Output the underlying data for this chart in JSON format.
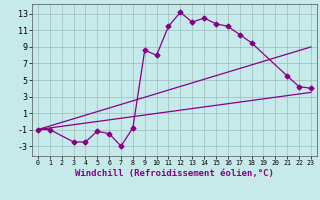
{
  "background_color": "#c6eaea",
  "grid_color": "#9bbdbd",
  "line_color": "#880088",
  "xlim": [
    -0.5,
    23.5
  ],
  "ylim": [
    -4.2,
    14.2
  ],
  "xticks": [
    0,
    1,
    2,
    3,
    4,
    5,
    6,
    7,
    8,
    9,
    10,
    11,
    12,
    13,
    14,
    15,
    16,
    17,
    18,
    19,
    20,
    21,
    22,
    23
  ],
  "yticks": [
    -3,
    -1,
    1,
    3,
    5,
    7,
    9,
    11,
    13
  ],
  "line1_x": [
    0,
    1,
    3,
    4,
    5,
    6,
    7,
    8,
    9,
    10,
    11,
    12,
    13,
    14,
    15,
    16,
    17,
    18,
    21,
    22,
    23
  ],
  "line1_y": [
    -1,
    -1,
    -2.5,
    -2.5,
    -1.2,
    -1.5,
    -3.0,
    -0.8,
    8.6,
    8.0,
    11.5,
    13.2,
    12.0,
    12.5,
    11.8,
    11.5,
    10.5,
    9.5,
    5.5,
    4.2,
    4.0
  ],
  "line2_x": [
    0,
    23
  ],
  "line2_y": [
    -1.0,
    9.0
  ],
  "line3_x": [
    0,
    23
  ],
  "line3_y": [
    -1.0,
    3.5
  ],
  "xlabel": "Windchill (Refroidissement éolien,°C)",
  "xlabel_fontsize": 6.5,
  "tick_fontsize_x": 4.8,
  "tick_fontsize_y": 6.0,
  "markersize": 2.5,
  "linewidth": 0.9
}
